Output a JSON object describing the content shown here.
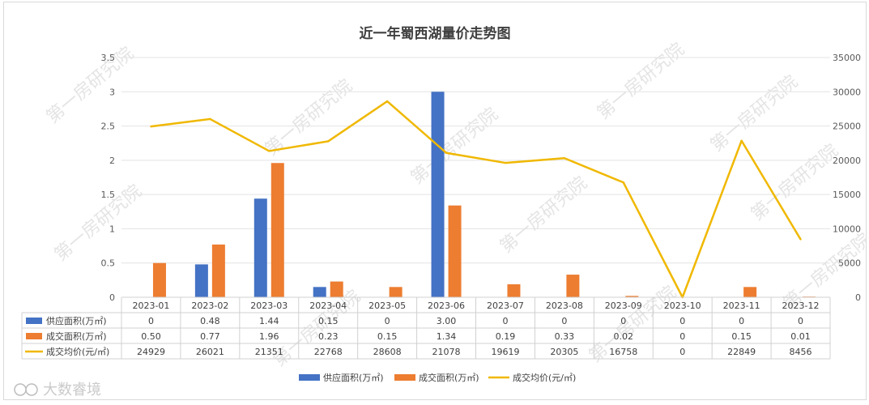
{
  "chart_data": {
    "type": "bar",
    "title": "近一年蜀西湖量价走势图",
    "categories": [
      "2023-01",
      "2023-02",
      "2023-03",
      "2023-04",
      "2023-05",
      "2023-06",
      "2023-07",
      "2023-08",
      "2023-09",
      "2023-10",
      "2023-11",
      "2023-12"
    ],
    "series": [
      {
        "name": "供应面积(万㎡)",
        "type": "bar",
        "axis": "left",
        "color": "#4472c4",
        "values": [
          0,
          0.48,
          1.44,
          0.15,
          0,
          3.0,
          0,
          0,
          0,
          0,
          0,
          0
        ],
        "table_values": [
          "0",
          "0.48",
          "1.44",
          "0.15",
          "0",
          "3.00",
          "0",
          "0",
          "0",
          "0",
          "0",
          "0"
        ]
      },
      {
        "name": "成交面积(万㎡)",
        "type": "bar",
        "axis": "left",
        "color": "#ed7d31",
        "values": [
          0.5,
          0.77,
          1.96,
          0.23,
          0.15,
          1.34,
          0.19,
          0.33,
          0.02,
          0,
          0.15,
          0.01
        ],
        "table_values": [
          "0.50",
          "0.77",
          "1.96",
          "0.23",
          "0.15",
          "1.34",
          "0.19",
          "0.33",
          "0.02",
          "0",
          "0.15",
          "0.01"
        ]
      },
      {
        "name": "成交均价(元/㎡)",
        "type": "line",
        "axis": "right",
        "color": "#f0b800",
        "values": [
          24929,
          26021,
          21351,
          22768,
          28608,
          21078,
          19619,
          20305,
          16758,
          0,
          22849,
          8456
        ],
        "table_values": [
          "24929",
          "26021",
          "21351",
          "22768",
          "28608",
          "21078",
          "19619",
          "20305",
          "16758",
          "0",
          "22849",
          "8456"
        ]
      }
    ],
    "y_left": {
      "ylim": [
        0,
        3.5
      ],
      "ticks": [
        "0",
        "0.5",
        "1",
        "1.5",
        "2",
        "2.5",
        "3",
        "3.5"
      ]
    },
    "y_right": {
      "ylim": [
        0,
        35000
      ],
      "ticks": [
        "0",
        "5000",
        "10000",
        "15000",
        "20000",
        "25000",
        "30000",
        "35000"
      ]
    },
    "grid": true,
    "legend": "bottom",
    "data_table": true
  },
  "watermark": "第一房研究院",
  "logo_text": "大数睿境"
}
